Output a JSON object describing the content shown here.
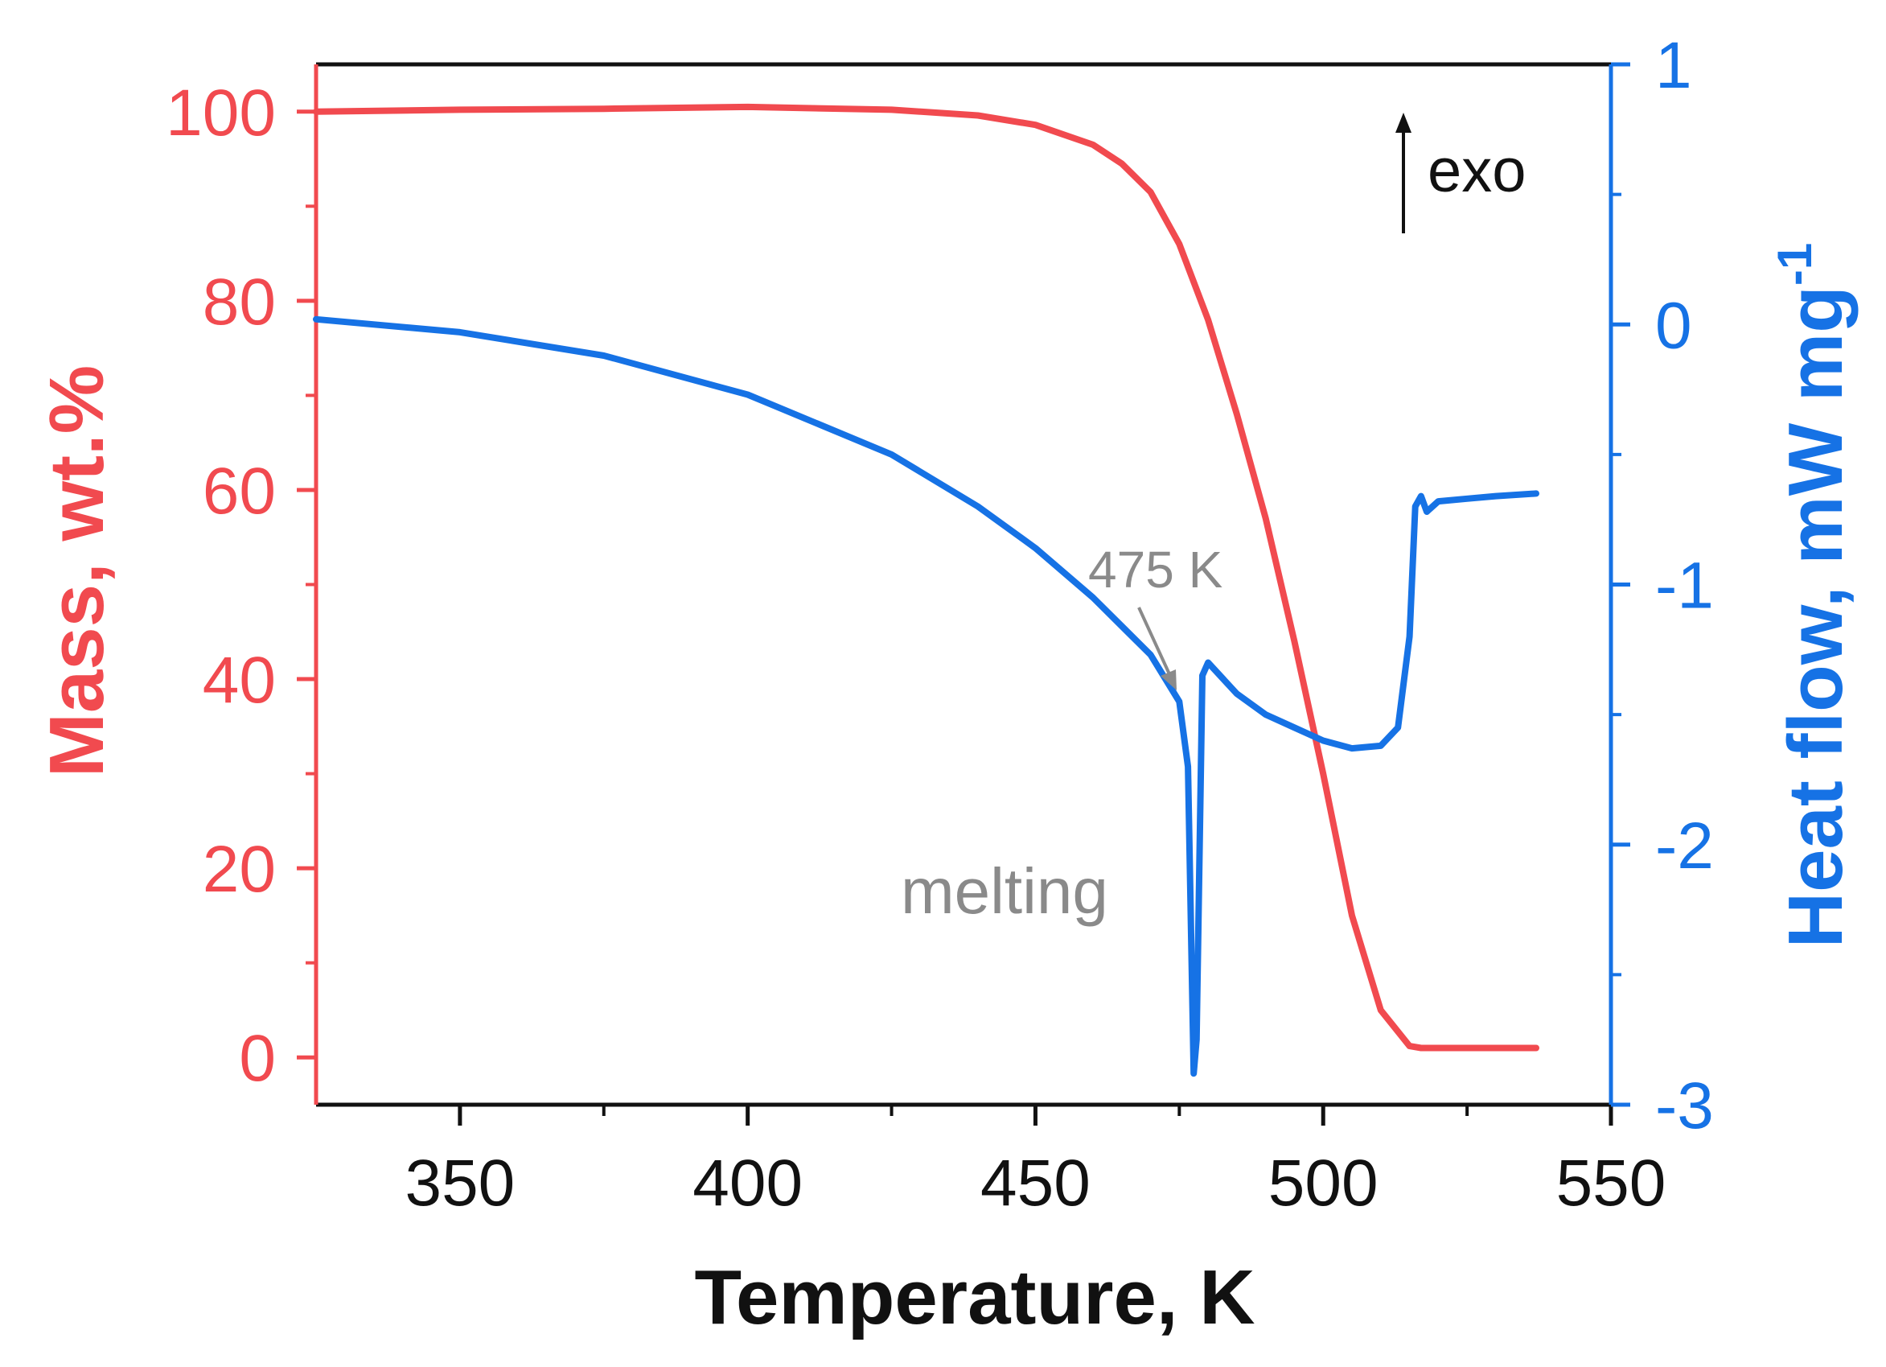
{
  "chart_data": {
    "type": "line",
    "title": "",
    "xlabel": "Temperature, K",
    "ylabel": "Mass, wt.%",
    "y2label_main": "Heat flow, mW mg",
    "y2label_sup": "-1",
    "xlim": [
      325,
      550
    ],
    "ylim": [
      -5,
      105
    ],
    "y2lim": [
      -3,
      1
    ],
    "xticks": [
      "350",
      "400",
      "450",
      "500",
      "550"
    ],
    "yticks": [
      "0",
      "20",
      "40",
      "60",
      "80",
      "100"
    ],
    "y2ticks": [
      "-3",
      "-2",
      "-1",
      "0",
      "1"
    ],
    "series": [
      {
        "name": "Mass",
        "axis": "left",
        "color": "#f14a4f",
        "x": [
          325,
          350,
          375,
          400,
          425,
          440,
          450,
          460,
          465,
          470,
          475,
          480,
          485,
          490,
          495,
          500,
          505,
          510,
          515,
          517,
          520,
          530,
          537
        ],
        "y": [
          100,
          100.2,
          100.3,
          100.5,
          100.2,
          99.6,
          98.6,
          96.5,
          94.5,
          91.5,
          86,
          78,
          68,
          57,
          44,
          30,
          15,
          5,
          1.2,
          1,
          1,
          1,
          1
        ]
      },
      {
        "name": "Heat flow",
        "axis": "right",
        "color": "#1672e5",
        "x": [
          325,
          350,
          375,
          400,
          425,
          440,
          450,
          460,
          470,
          475,
          476.5,
          477.5,
          478,
          479,
          480,
          485,
          490,
          495,
          500,
          505,
          510,
          513,
          515,
          516,
          517,
          518,
          520,
          525,
          530,
          537
        ],
        "y": [
          0.02,
          -0.03,
          -0.12,
          -0.27,
          -0.5,
          -0.7,
          -0.86,
          -1.05,
          -1.27,
          -1.45,
          -1.7,
          -2.88,
          -2.75,
          -1.35,
          -1.3,
          -1.42,
          -1.5,
          -1.55,
          -1.6,
          -1.63,
          -1.62,
          -1.55,
          -1.2,
          -0.7,
          -0.66,
          -0.72,
          -0.68,
          -0.67,
          -0.66,
          -0.65
        ]
      }
    ],
    "annotations": {
      "peak_label": "475 K",
      "event_label": "melting",
      "exo_label": "exo"
    },
    "colors": {
      "mass": "#f14a4f",
      "heat": "#1672e5",
      "annotation": "#8a8a8a",
      "frame": "#111111"
    }
  }
}
